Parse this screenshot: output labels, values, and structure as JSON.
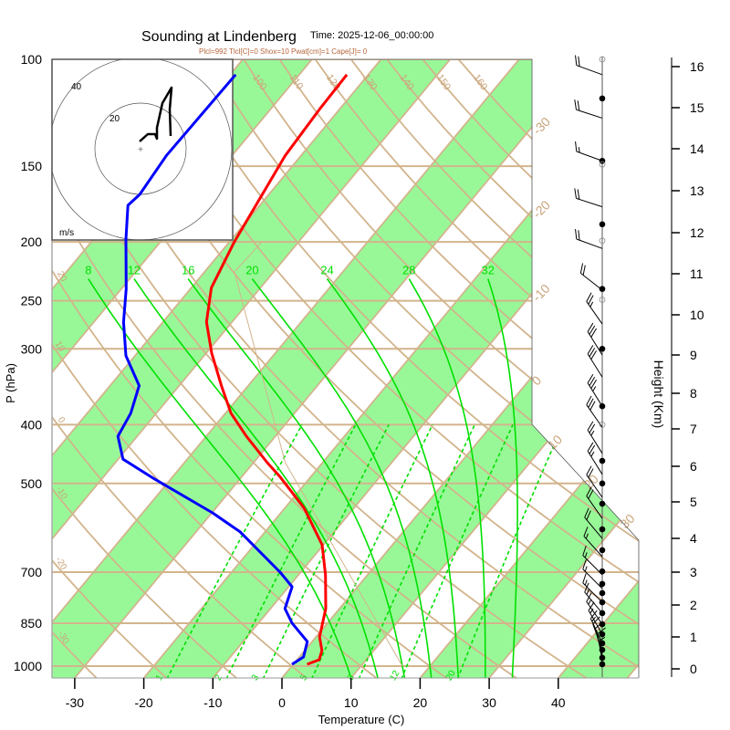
{
  "header": {
    "title": "Sounding at Lindenberg",
    "time": "Time: 2025-12-06_00:00:00",
    "indices": "Plcl=992 Tlcl[C]=0 Shox=10 Pwat[cm]=1 Cape[J]= 0"
  },
  "colors": {
    "temperature": "#ff0000",
    "dewpoint": "#0000ff",
    "band": "#98f898",
    "grid": "#d2b48c",
    "moist": "#00e000",
    "label_tan": "#c9a47a",
    "indices": "#b5653a"
  },
  "chart_data": {
    "type": "line",
    "title": "Sounding at Lindenberg",
    "xlabel": "Temperature (C)",
    "ylabel": "P (hPa)",
    "y2label": "Height (Km)",
    "xlim": [
      -35,
      50
    ],
    "ylim": [
      1050,
      100
    ],
    "x_ticks": [
      -30,
      -20,
      -10,
      0,
      10,
      20,
      30,
      40
    ],
    "pressure_ticks": [
      100,
      150,
      200,
      250,
      300,
      400,
      500,
      700,
      850,
      1000
    ],
    "pressure_lines": [
      100,
      150,
      200,
      250,
      300,
      400,
      500,
      700,
      850,
      1000
    ],
    "height_ticks": [
      0,
      1,
      2,
      3,
      4,
      5,
      6,
      7,
      8,
      9,
      10,
      11,
      12,
      13,
      14,
      15,
      16
    ],
    "isotherm_labels": [
      -30,
      -20,
      -10,
      0,
      10,
      20,
      30
    ],
    "dry_adiabats_C": [
      -30,
      -20,
      -10,
      0,
      10,
      20,
      30,
      40,
      50,
      60,
      70,
      80,
      90,
      100,
      110,
      120,
      130,
      140,
      150,
      160
    ],
    "dry_adiabat_top_labels": [
      90,
      100,
      110,
      120,
      130,
      140,
      150,
      160
    ],
    "dry_adiabat_left_labels": [
      20,
      10,
      0,
      -10,
      -20,
      -30
    ],
    "moist_adiabats_C": [
      8,
      12,
      16,
      20,
      24,
      28,
      32
    ],
    "mixing_ratios_gkg": [
      1,
      2,
      3,
      5,
      8,
      12,
      20
    ],
    "series": [
      {
        "name": "Temperature",
        "points_p_T": [
          [
            106,
            -63.1
          ],
          [
            121,
            -62.9
          ],
          [
            144,
            -62.3
          ],
          [
            200,
            -59.3
          ],
          [
            238,
            -57.1
          ],
          [
            271,
            -53.7
          ],
          [
            305,
            -49.2
          ],
          [
            345,
            -43.9
          ],
          [
            383,
            -39.2
          ],
          [
            418,
            -34.2
          ],
          [
            462,
            -28.0
          ],
          [
            488,
            -24.4
          ],
          [
            549,
            -17.2
          ],
          [
            631,
            -10.2
          ],
          [
            707,
            -6.1
          ],
          [
            804,
            -2.0
          ],
          [
            895,
            0.5
          ],
          [
            943,
            2.5
          ],
          [
            976,
            3.2
          ],
          [
            993,
            2.0
          ]
        ]
      },
      {
        "name": "Dewpoint",
        "points_p_T": [
          [
            106,
            -79.2
          ],
          [
            144,
            -79.5
          ],
          [
            167,
            -78.7
          ],
          [
            174,
            -79.1
          ],
          [
            198,
            -75.3
          ],
          [
            239,
            -69.3
          ],
          [
            271,
            -65.7
          ],
          [
            308,
            -61.3
          ],
          [
            345,
            -55.8
          ],
          [
            383,
            -53.7
          ],
          [
            418,
            -52.8
          ],
          [
            456,
            -49.3
          ],
          [
            492,
            -42.3
          ],
          [
            559,
            -29.9
          ],
          [
            601,
            -23.6
          ],
          [
            700,
            -13.0
          ],
          [
            740,
            -9.5
          ],
          [
            804,
            -7.9
          ],
          [
            850,
            -5.1
          ],
          [
            911,
            -0.7
          ],
          [
            966,
            0.6
          ],
          [
            993,
            -0.2
          ]
        ]
      },
      {
        "name": "Parcel",
        "points_p_T": [
          [
            200,
            -55.3
          ],
          [
            224,
            -55.7
          ],
          [
            462,
            -25.4
          ],
          [
            1000,
            16.0
          ]
        ]
      }
    ],
    "hodograph": {
      "unit_label": "m/s",
      "ring_labels": [
        20,
        40
      ],
      "points_uv": [
        [
          -0.4,
          3.2
        ],
        [
          3.2,
          6.4
        ],
        [
          6.4,
          6.4
        ],
        [
          7.2,
          4.4
        ],
        [
          7.2,
          9.2
        ],
        [
          9.6,
          20.0
        ],
        [
          13.6,
          26.8
        ],
        [
          12.8,
          17.2
        ],
        [
          13.2,
          5.6
        ]
      ]
    },
    "wind_barbs": [
      {
        "p": 106,
        "dir": 250,
        "kt": 20
      },
      {
        "p": 125,
        "dir": 252,
        "kt": 20
      },
      {
        "p": 147,
        "dir": 250,
        "kt": 15
      },
      {
        "p": 175,
        "dir": 252,
        "kt": 20
      },
      {
        "p": 205,
        "dir": 250,
        "kt": 20
      },
      {
        "p": 240,
        "dir": 232,
        "kt": 20
      },
      {
        "p": 273,
        "dir": 215,
        "kt": 25
      },
      {
        "p": 307,
        "dir": 212,
        "kt": 30
      },
      {
        "p": 334,
        "dir": 212,
        "kt": 30
      },
      {
        "p": 373,
        "dir": 212,
        "kt": 35
      },
      {
        "p": 404,
        "dir": 215,
        "kt": 30
      },
      {
        "p": 446,
        "dir": 212,
        "kt": 25
      },
      {
        "p": 483,
        "dir": 212,
        "kt": 25
      },
      {
        "p": 527,
        "dir": 215,
        "kt": 20
      },
      {
        "p": 571,
        "dir": 215,
        "kt": 20
      },
      {
        "p": 616,
        "dir": 220,
        "kt": 20
      },
      {
        "p": 660,
        "dir": 222,
        "kt": 15
      },
      {
        "p": 707,
        "dir": 225,
        "kt": 15
      },
      {
        "p": 745,
        "dir": 225,
        "kt": 15
      },
      {
        "p": 785,
        "dir": 225,
        "kt": 15
      },
      {
        "p": 818,
        "dir": 220,
        "kt": 15
      },
      {
        "p": 853,
        "dir": 215,
        "kt": 15
      },
      {
        "p": 886,
        "dir": 210,
        "kt": 15
      },
      {
        "p": 917,
        "dir": 205,
        "kt": 15
      },
      {
        "p": 940,
        "dir": 200,
        "kt": 10
      },
      {
        "p": 959,
        "dir": 195,
        "kt": 10
      },
      {
        "p": 980,
        "dir": 190,
        "kt": 10
      },
      {
        "p": 993,
        "dir": 185,
        "kt": 5
      }
    ],
    "filled_markers_p": [
      116,
      147,
      187,
      239,
      300,
      373,
      459,
      500,
      540,
      595,
      644,
      698,
      732,
      758,
      785,
      818,
      853,
      886,
      917,
      940,
      969,
      993
    ],
    "open_markers_p": [
      100,
      149,
      199,
      249,
      400
    ]
  }
}
